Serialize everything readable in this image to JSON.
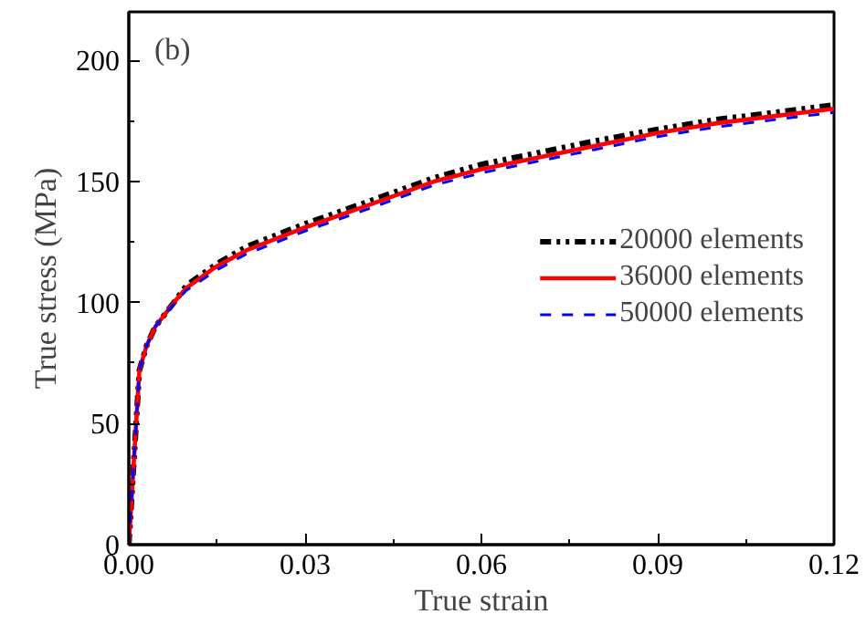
{
  "chart_data": {
    "type": "line",
    "xlabel": "True strain",
    "ylabel": "True stress (MPa)",
    "x": [
      0,
      0.0018,
      0.003,
      0.0045,
      0.0061,
      0.008,
      0.0098,
      0.015,
      0.02,
      0.03,
      0.04,
      0.052,
      0.06,
      0.07,
      0.08,
      0.09,
      0.1,
      0.11,
      0.12
    ],
    "series": [
      {
        "name": "20000 elements",
        "color": "#000000",
        "line_style": "dashdot",
        "values": [
          0,
          72,
          82,
          90,
          95,
          101,
          107,
          116,
          123,
          132.5,
          141,
          151.5,
          157,
          162,
          167,
          171.5,
          175.5,
          178.5,
          181.5
        ]
      },
      {
        "name": "36000 elements",
        "color": "#ff0000",
        "line_style": "solid",
        "values": [
          0,
          72,
          82,
          90,
          95,
          101,
          106,
          115,
          121.5,
          131,
          139.5,
          150,
          155,
          160,
          165,
          170,
          174,
          177,
          180
        ]
      },
      {
        "name": "50000 elements",
        "color": "#0000ff",
        "line_style": "dashed",
        "values": [
          0,
          72,
          82,
          90,
          95,
          100.5,
          105,
          113.5,
          120,
          129.5,
          138,
          148.5,
          153.5,
          158.5,
          163.5,
          168.5,
          172.5,
          175.5,
          178.5
        ]
      }
    ],
    "xlim": [
      0,
      0.12
    ],
    "xticks": [
      {
        "value": 0,
        "label": "0.00"
      },
      0.03,
      0.06,
      0.09,
      0.12
    ],
    "ylim": [
      0,
      220
    ],
    "yticks": [
      0,
      50,
      100,
      150,
      200
    ],
    "annotations": [
      "(b)"
    ],
    "legend": "right",
    "grid": false,
    "marker": "none"
  }
}
